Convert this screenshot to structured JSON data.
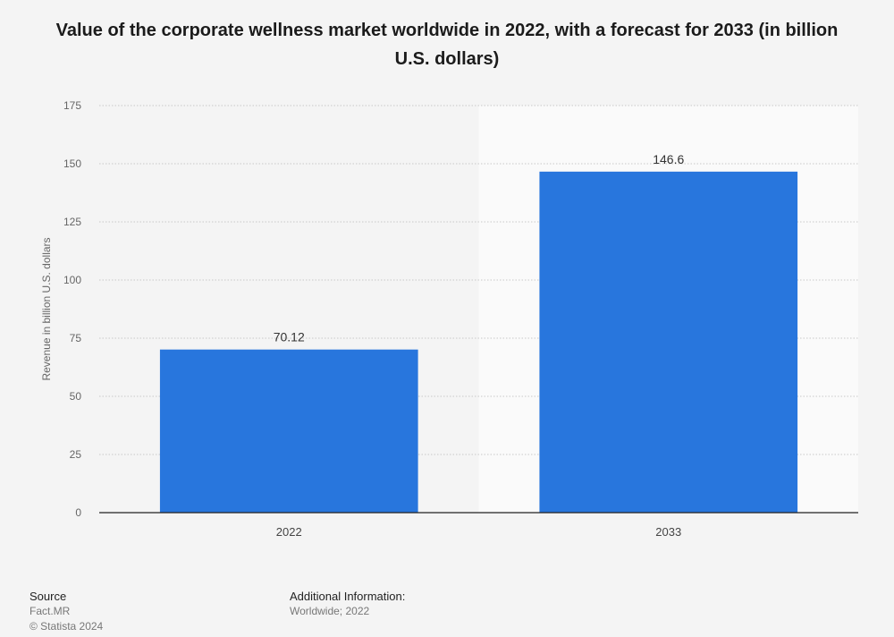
{
  "chart_data": {
    "type": "bar",
    "title": "Value of the corporate wellness market worldwide in 2022, with a forecast for 2033 (in billion U.S. dollars)",
    "categories": [
      "2022",
      "2033"
    ],
    "values": [
      70.12,
      146.6
    ],
    "value_labels": [
      "70.12",
      "146.6"
    ],
    "xlabel": "",
    "ylabel": "Revenue in billion U.S. dollars",
    "ylim": [
      0,
      175
    ],
    "yticks": [
      0,
      25,
      50,
      75,
      100,
      125,
      150,
      175
    ],
    "ytick_labels": [
      "0",
      "25",
      "50",
      "75",
      "100",
      "125",
      "150",
      "175"
    ],
    "grid": true,
    "forecast_highlight_category": "2033",
    "bar_color": "#2876dd",
    "forecast_band_color": "#fafafa"
  },
  "footer": {
    "source_heading": "Source",
    "source_name": "Fact.MR",
    "copyright": "© Statista 2024",
    "additional_heading": "Additional Information:",
    "additional_text": "Worldwide; 2022"
  }
}
